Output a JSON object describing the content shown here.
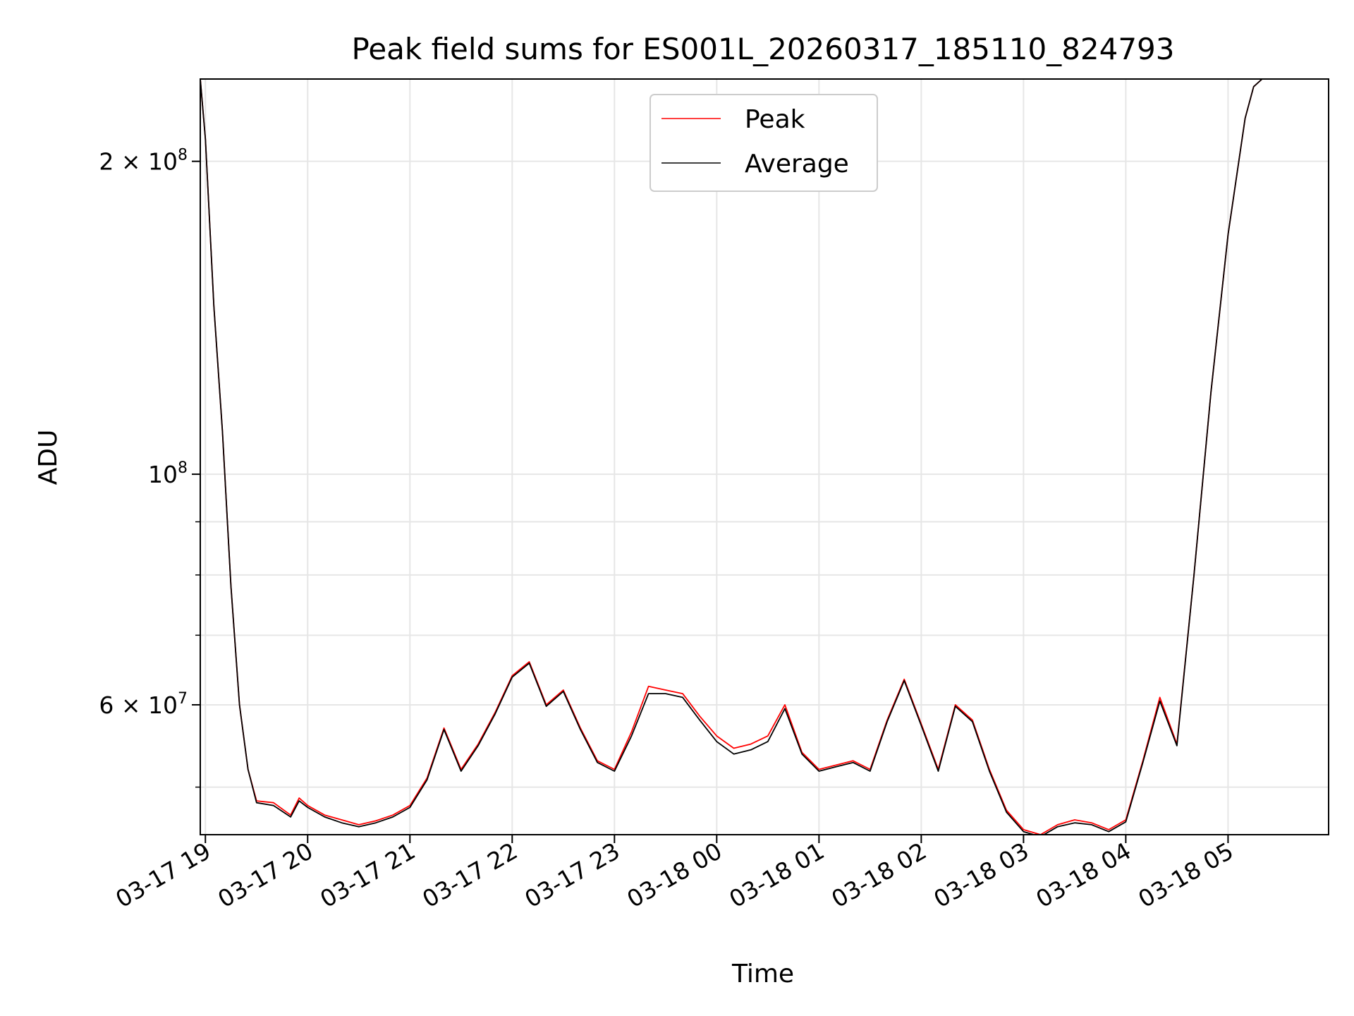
{
  "chart_data": {
    "type": "line",
    "title": "Peak field sums for ES001L_20260317_185110_824793",
    "xlabel": "Time",
    "ylabel": "ADU",
    "yscale": "log",
    "ylim": [
      45000000,
      240000000
    ],
    "xlim": [
      "03-17 18:57",
      "03-18 05:59"
    ],
    "x_ticks": [
      "03-17 19",
      "03-17 20",
      "03-17 21",
      "03-17 22",
      "03-17 23",
      "03-18 00",
      "03-18 01",
      "03-18 02",
      "03-18 03",
      "03-18 04",
      "03-18 05"
    ],
    "y_ticks": [
      {
        "value": 200000000,
        "label": "2 × 10",
        "exp": "8"
      },
      {
        "value": 100000000,
        "label": "10",
        "exp": "8"
      },
      {
        "value": 60000000,
        "label": "6 × 10",
        "exp": "7"
      }
    ],
    "y_minor_ticks": [
      50000000,
      70000000,
      80000000,
      90000000
    ],
    "grid": true,
    "legend_position": "upper center",
    "colors": {
      "peak": "#ff0000",
      "average": "#000000"
    },
    "x": [
      "03-17 18:57",
      "03-17 19:00",
      "03-17 19:05",
      "03-17 19:10",
      "03-17 19:15",
      "03-17 19:20",
      "03-17 19:25",
      "03-17 19:30",
      "03-17 19:40",
      "03-17 19:50",
      "03-17 19:55",
      "03-17 20:00",
      "03-17 20:10",
      "03-17 20:20",
      "03-17 20:30",
      "03-17 20:40",
      "03-17 20:50",
      "03-17 21:00",
      "03-17 21:10",
      "03-17 21:20",
      "03-17 21:30",
      "03-17 21:40",
      "03-17 21:50",
      "03-17 22:00",
      "03-17 22:10",
      "03-17 22:20",
      "03-17 22:30",
      "03-17 22:40",
      "03-17 22:50",
      "03-17 23:00",
      "03-17 23:10",
      "03-17 23:20",
      "03-17 23:30",
      "03-17 23:40",
      "03-17 23:50",
      "03-18 00:00",
      "03-18 00:10",
      "03-18 00:20",
      "03-18 00:30",
      "03-18 00:40",
      "03-18 00:50",
      "03-18 01:00",
      "03-18 01:10",
      "03-18 01:20",
      "03-18 01:30",
      "03-18 01:40",
      "03-18 01:50",
      "03-18 02:00",
      "03-18 02:10",
      "03-18 02:20",
      "03-18 02:30",
      "03-18 02:40",
      "03-18 02:50",
      "03-18 03:00",
      "03-18 03:10",
      "03-18 03:20",
      "03-18 03:30",
      "03-18 03:40",
      "03-18 03:50",
      "03-18 04:00",
      "03-18 04:10",
      "03-18 04:20",
      "03-18 04:30",
      "03-18 04:40",
      "03-18 04:50",
      "03-18 05:00",
      "03-18 05:10",
      "03-18 05:15",
      "03-18 05:20",
      "03-18 05:25",
      "03-18 05:30",
      "03-18 05:35",
      "03-18 05:40",
      "03-18 05:45",
      "03-18 05:50",
      "03-18 05:59"
    ],
    "series": [
      {
        "name": "Peak",
        "values": [
          240000000,
          210000000,
          145000000,
          110000000,
          78000000,
          60000000,
          52000000,
          48500000,
          48300000,
          47000000,
          48800000,
          48000000,
          47000000,
          46500000,
          46000000,
          46400000,
          47000000,
          48000000,
          51000000,
          57000000,
          52000000,
          55000000,
          59000000,
          64000000,
          66000000,
          60000000,
          62000000,
          57000000,
          53000000,
          52000000,
          56500000,
          62500000,
          62000000,
          61500000,
          58500000,
          56000000,
          54500000,
          55000000,
          56000000,
          60000000,
          54000000,
          52000000,
          52500000,
          53000000,
          52000000,
          58000000,
          63500000,
          57500000,
          52000000,
          60000000,
          58000000,
          52000000,
          47500000,
          45500000,
          45000000,
          46000000,
          46500000,
          46200000,
          45500000,
          46500000,
          53000000,
          61000000,
          55000000,
          80000000,
          120000000,
          170000000,
          220000000,
          236000000,
          240000000,
          240000000,
          240000000,
          240000000,
          240000000,
          240000000,
          240000000,
          240000000
        ]
      },
      {
        "name": "Average",
        "values": [
          240000000,
          210000000,
          145000000,
          110000000,
          78000000,
          60000000,
          52000000,
          48300000,
          48000000,
          46800000,
          48500000,
          47800000,
          46800000,
          46200000,
          45800000,
          46200000,
          46800000,
          47800000,
          50800000,
          56800000,
          51800000,
          54800000,
          58800000,
          63800000,
          65800000,
          59800000,
          61800000,
          56800000,
          52800000,
          51800000,
          56000000,
          61500000,
          61500000,
          61000000,
          58000000,
          55300000,
          53800000,
          54300000,
          55300000,
          59500000,
          53800000,
          51800000,
          52300000,
          52800000,
          51800000,
          57800000,
          63300000,
          57300000,
          51800000,
          59800000,
          57800000,
          51800000,
          47300000,
          45300000,
          44800000,
          45800000,
          46200000,
          46000000,
          45300000,
          46300000,
          52800000,
          60500000,
          54800000,
          80000000,
          120000000,
          170000000,
          220000000,
          236000000,
          240000000,
          240000000,
          240000000,
          240000000,
          240000000,
          240000000,
          240000000,
          240000000
        ]
      }
    ]
  }
}
